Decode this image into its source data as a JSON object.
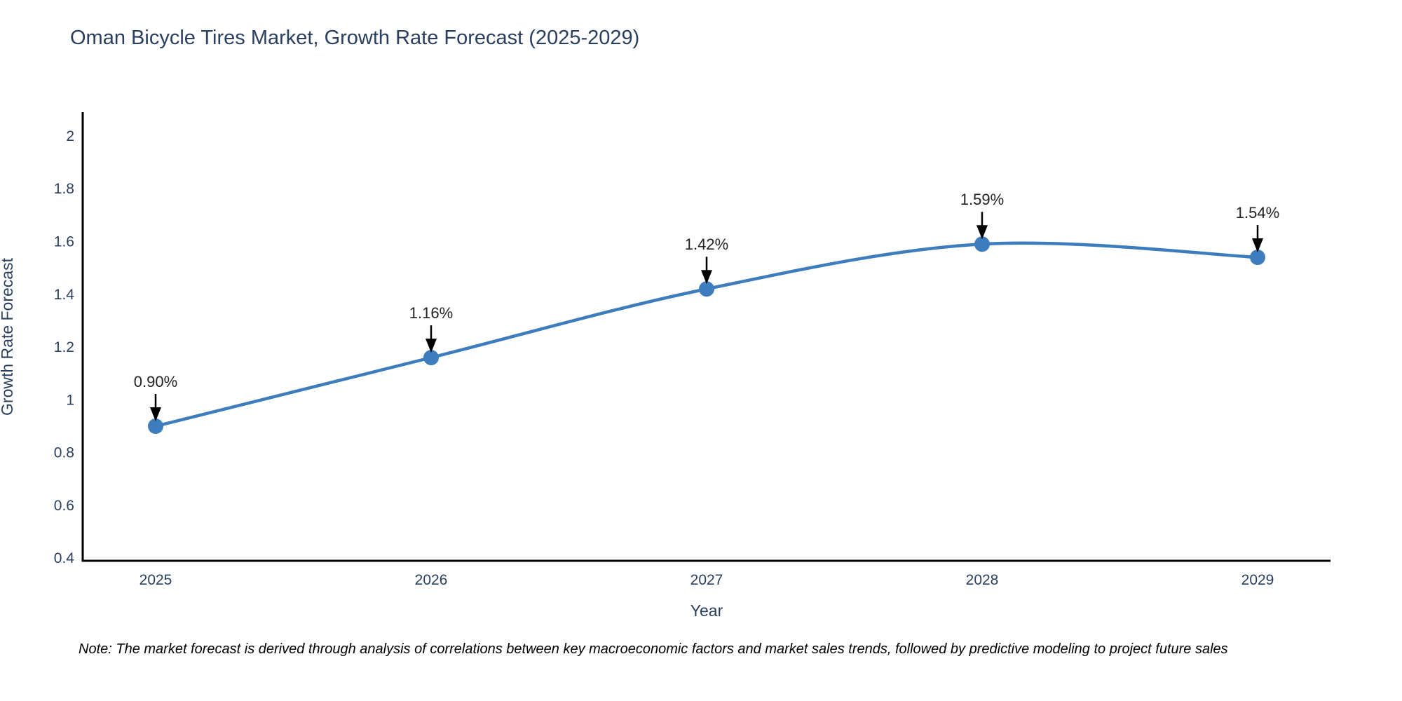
{
  "chart_data": {
    "type": "line",
    "title": "Oman Bicycle Tires Market, Growth Rate Forecast (2025-2029)",
    "xlabel": "Year",
    "ylabel": "Growth Rate Forecast",
    "x": [
      2025,
      2026,
      2027,
      2028,
      2029
    ],
    "series": [
      {
        "name": "Growth Rate Forecast",
        "values": [
          0.9,
          1.16,
          1.42,
          1.59,
          1.54
        ],
        "point_labels": [
          "0.90%",
          "1.16%",
          "1.42%",
          "1.59%",
          "1.54%"
        ]
      }
    ],
    "ytick_labels": [
      "0.4",
      "0.6",
      "0.8",
      "1",
      "1.2",
      "1.4",
      "1.6",
      "1.8",
      "2"
    ],
    "yticks": [
      0.4,
      0.6,
      0.8,
      1.0,
      1.2,
      1.4,
      1.6,
      1.8,
      2.0
    ],
    "ylim": [
      0.39,
      2.09
    ],
    "grid": false,
    "legend": false,
    "line_shape": "spline",
    "annotations_arrow": "down-arrow"
  },
  "note": "Note: The market forecast is derived through analysis of correlations between key macroeconomic factors and market sales trends, followed by predictive modeling to project future sales",
  "colors": {
    "line": "#3e7dbd",
    "marker": "#3e7dbd",
    "axis": "#000000",
    "tick_text": "#2a3f5f",
    "title_text": "#2a3f5f",
    "annotation_text": "#222222",
    "arrow": "#000000",
    "background": "#ffffff"
  }
}
